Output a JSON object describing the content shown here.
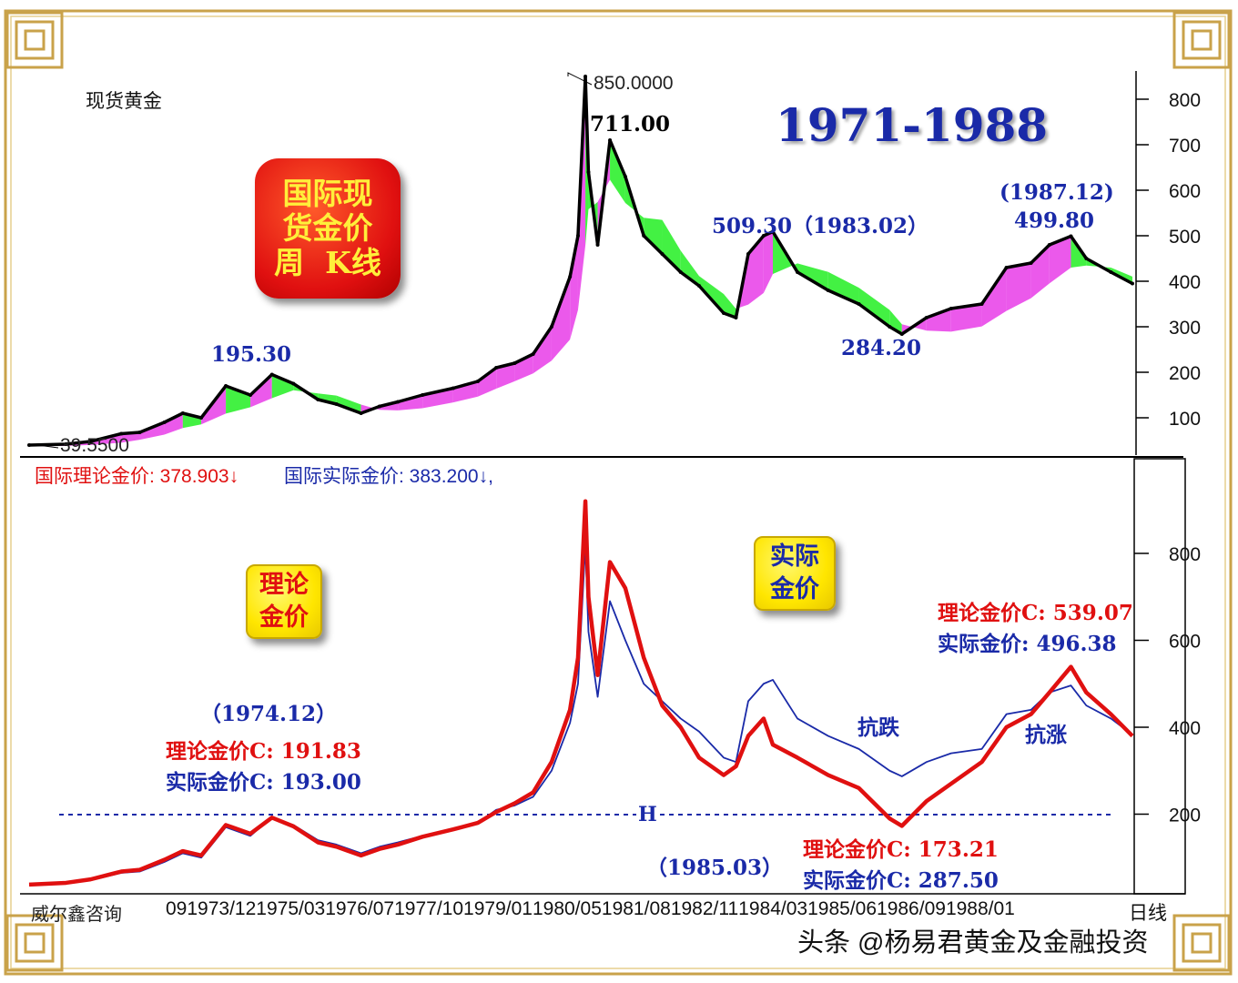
{
  "top_panel": {
    "instrument": "现货黄金",
    "period_title": "1971-1988",
    "badge_lines": [
      "国际现",
      "货金价",
      "周  K线"
    ],
    "peak_label": "850.0000",
    "low_label": "39.5500",
    "annotations": [
      {
        "id": "a1",
        "text": "195.30",
        "color": "#1a2aa8"
      },
      {
        "id": "a2",
        "text": "711.00",
        "color": "#000000"
      },
      {
        "id": "a3",
        "text": "509.30（1983.02）",
        "color": "#1a2aa8"
      },
      {
        "id": "a4",
        "text": "284.20",
        "color": "#1a2aa8"
      },
      {
        "id": "a5",
        "text": "(1987.12)",
        "color": "#1a2aa8"
      },
      {
        "id": "a6",
        "text": "499.80",
        "color": "#1a2aa8"
      }
    ],
    "y_ticks": [
      "100",
      "200",
      "300",
      "400",
      "500",
      "600",
      "700",
      "800"
    ]
  },
  "bottom_panel": {
    "legend_theory": "国际理论金价: 378.903↓",
    "legend_actual": "国际实际金价: 383.200↓,",
    "badge_theory": [
      "理论",
      "金价"
    ],
    "badge_actual": [
      "实际",
      "金价"
    ],
    "h_marker": "H",
    "annotations": [
      {
        "id": "b1",
        "text": "（1974.12）",
        "color": "#1a2aa8"
      },
      {
        "id": "b2",
        "text": "理论金价C: 191.83",
        "color": "#e01010"
      },
      {
        "id": "b3",
        "text": "实际金价C: 193.00",
        "color": "#1a2aa8"
      },
      {
        "id": "b4",
        "text": "理论金价C: 539.07",
        "color": "#e01010"
      },
      {
        "id": "b5",
        "text": "实际金价: 496.38",
        "color": "#1a2aa8"
      },
      {
        "id": "b6",
        "text": "抗跌",
        "color": "#1a2aa8"
      },
      {
        "id": "b7",
        "text": "抗涨",
        "color": "#1a2aa8"
      },
      {
        "id": "b8",
        "text": "（1985.03）",
        "color": "#1a2aa8"
      },
      {
        "id": "b9",
        "text": "理论金价C: 173.21",
        "color": "#e01010"
      },
      {
        "id": "b10",
        "text": "实际金价C: 287.50",
        "color": "#1a2aa8"
      }
    ],
    "y_ticks": [
      "200",
      "400",
      "600",
      "800"
    ],
    "x_ticks": [
      "09",
      "1973/12",
      "1975/03",
      "1976/07",
      "1977/10",
      "1979/01",
      "1980/05",
      "1981/08",
      "1982/11",
      "1984/03",
      "1985/06",
      "1986/09",
      "1988/01"
    ],
    "x_suffix": "日线",
    "source": "威尔鑫咨询"
  },
  "watermark": "头条 @杨易君黄金及金融投资",
  "colors": {
    "price": "#000000",
    "rising_fill": "#e83ce8",
    "falling_fill": "#22ee22",
    "theory_line": "#e01010",
    "actual_line": "#1a2aa8",
    "frame_gold": "#c9a24a"
  },
  "chart_data": [
    {
      "type": "line",
      "title": "1971-1988",
      "subtitle": "现货黄金",
      "ylim": [
        0,
        880
      ],
      "x": [
        1971.0,
        1971.6,
        1972.0,
        1972.5,
        1972.8,
        1973.2,
        1973.5,
        1973.8,
        1974.2,
        1974.6,
        1974.95,
        1975.3,
        1975.7,
        1976.0,
        1976.4,
        1976.7,
        1977.0,
        1977.4,
        1977.9,
        1978.3,
        1978.6,
        1978.9,
        1979.2,
        1979.5,
        1979.8,
        1979.93,
        1980.05,
        1980.1,
        1980.25,
        1980.45,
        1980.7,
        1981.0,
        1981.3,
        1981.6,
        1981.9,
        1982.3,
        1982.5,
        1982.7,
        1982.95,
        1983.1,
        1983.5,
        1984.0,
        1984.5,
        1985.0,
        1985.2,
        1985.6,
        1986.0,
        1986.5,
        1986.9,
        1987.3,
        1987.6,
        1987.95,
        1988.2,
        1988.6,
        1988.95
      ],
      "series": [
        {
          "values": [
            40,
            42,
            48,
            65,
            68,
            90,
            110,
            100,
            170,
            150,
            195,
            175,
            140,
            130,
            110,
            125,
            135,
            150,
            165,
            180,
            210,
            220,
            240,
            300,
            410,
            500,
            850,
            640,
            480,
            710,
            630,
            500,
            460,
            420,
            390,
            330,
            320,
            460,
            500,
            509,
            420,
            380,
            350,
            300,
            284,
            320,
            340,
            350,
            430,
            440,
            480,
            499,
            450,
            420,
            395
          ]
        }
      ]
    },
    {
      "type": "line",
      "ylim": [
        0,
        950
      ],
      "x": [
        1971.0,
        1971.6,
        1972.0,
        1972.5,
        1972.8,
        1973.2,
        1973.5,
        1973.8,
        1974.2,
        1974.6,
        1974.95,
        1975.3,
        1975.7,
        1976.0,
        1976.4,
        1976.7,
        1977.0,
        1977.4,
        1977.9,
        1978.3,
        1978.6,
        1978.9,
        1979.2,
        1979.5,
        1979.8,
        1979.93,
        1980.05,
        1980.1,
        1980.25,
        1980.45,
        1980.7,
        1981.0,
        1981.3,
        1981.6,
        1981.9,
        1982.3,
        1982.5,
        1982.7,
        1982.95,
        1983.1,
        1983.5,
        1984.0,
        1984.5,
        1985.0,
        1985.2,
        1985.6,
        1986.0,
        1986.5,
        1986.9,
        1987.3,
        1987.6,
        1987.95,
        1988.2,
        1988.6,
        1988.95
      ],
      "series": [
        {
          "name": "国际理论金价",
          "values": [
            38,
            42,
            50,
            68,
            72,
            95,
            115,
            105,
            175,
            155,
            192,
            172,
            135,
            125,
            105,
            120,
            130,
            148,
            165,
            180,
            205,
            225,
            250,
            320,
            440,
            560,
            920,
            700,
            520,
            780,
            720,
            560,
            450,
            400,
            330,
            290,
            310,
            380,
            420,
            360,
            330,
            290,
            260,
            190,
            173,
            230,
            270,
            320,
            400,
            430,
            480,
            539,
            480,
            430,
            380
          ]
        },
        {
          "name": "国际实际金价",
          "values": [
            38,
            42,
            48,
            65,
            68,
            90,
            110,
            100,
            170,
            150,
            193,
            175,
            140,
            130,
            110,
            125,
            135,
            150,
            165,
            180,
            210,
            220,
            240,
            300,
            410,
            500,
            820,
            620,
            470,
            690,
            600,
            500,
            460,
            420,
            390,
            330,
            320,
            460,
            500,
            509,
            420,
            380,
            350,
            300,
            287,
            320,
            340,
            350,
            430,
            440,
            480,
            496,
            450,
            420,
            383
          ]
        }
      ]
    }
  ]
}
